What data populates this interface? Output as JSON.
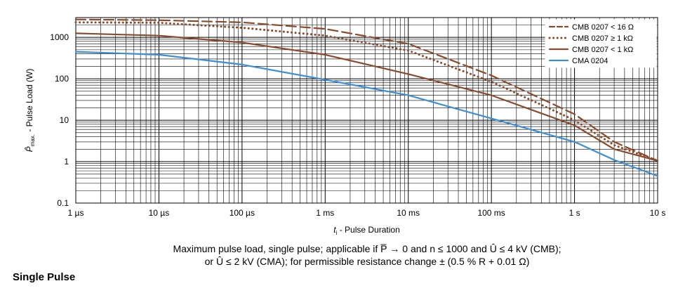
{
  "chart_data": {
    "type": "line",
    "xscale": "log",
    "yscale": "log",
    "xlim": [
      1e-06,
      10
    ],
    "ylim": [
      0.1,
      3000
    ],
    "grid": true,
    "legend_position": "top-right",
    "xlabel": "ti - Pulse Duration",
    "ylabel": "P̂max. - Pulse Load (W)",
    "x_ticks": [
      {
        "value": 1e-06,
        "label": "1 µs"
      },
      {
        "value": 1e-05,
        "label": "10 µs"
      },
      {
        "value": 0.0001,
        "label": "100 µs"
      },
      {
        "value": 0.001,
        "label": "1 ms"
      },
      {
        "value": 0.01,
        "label": "10 ms"
      },
      {
        "value": 0.1,
        "label": "100 ms"
      },
      {
        "value": 1,
        "label": "1 s"
      },
      {
        "value": 10,
        "label": "10 s"
      }
    ],
    "y_ticks": [
      {
        "value": 0.1,
        "label": "0.1"
      },
      {
        "value": 1,
        "label": "1"
      },
      {
        "value": 10,
        "label": "10"
      },
      {
        "value": 100,
        "label": "100"
      },
      {
        "value": 1000,
        "label": "1000"
      }
    ],
    "series": [
      {
        "name": "CMB 0207 < 16 Ω",
        "color": "#8b4a2b",
        "style": "dashed",
        "points": [
          [
            1e-06,
            2700
          ],
          [
            1e-05,
            2600
          ],
          [
            0.0001,
            2300
          ],
          [
            0.001,
            1600
          ],
          [
            0.01,
            700
          ],
          [
            0.1,
            120
          ],
          [
            1,
            14
          ],
          [
            3,
            3
          ],
          [
            10,
            1.05
          ]
        ]
      },
      {
        "name": "CMB 0207 ≥ 1 kΩ",
        "color": "#8b4a2b",
        "style": "dotted",
        "points": [
          [
            1e-06,
            2300
          ],
          [
            1e-05,
            2250
          ],
          [
            0.0001,
            1700
          ],
          [
            0.001,
            1100
          ],
          [
            0.01,
            480
          ],
          [
            0.1,
            85
          ],
          [
            1,
            10
          ],
          [
            3,
            2.5
          ],
          [
            10,
            1.05
          ]
        ]
      },
      {
        "name": "CMB 0207 < 1 kΩ",
        "color": "#8b4a2b",
        "style": "solid",
        "points": [
          [
            1e-06,
            1250
          ],
          [
            1e-05,
            1100
          ],
          [
            0.0001,
            750
          ],
          [
            0.001,
            380
          ],
          [
            0.01,
            130
          ],
          [
            0.1,
            40
          ],
          [
            1,
            7.5
          ],
          [
            3,
            2
          ],
          [
            10,
            1.05
          ]
        ]
      },
      {
        "name": "CMA 0204",
        "color": "#3a8fd6",
        "style": "solid",
        "points": [
          [
            1e-06,
            450
          ],
          [
            1e-05,
            380
          ],
          [
            0.0001,
            220
          ],
          [
            0.001,
            95
          ],
          [
            0.01,
            40
          ],
          [
            0.1,
            11
          ],
          [
            1,
            3
          ],
          [
            3,
            1.1
          ],
          [
            10,
            0.45
          ]
        ]
      }
    ]
  },
  "axis": {
    "y_label_hat_p": "P̂",
    "y_label_sub": "max.",
    "y_label_rest": " - Pulse Load  (W)",
    "x_label_t": "t",
    "x_label_sub": "i",
    "x_label_rest": " - Pulse Duration"
  },
  "caption": {
    "line1": "Maximum pulse load, single pulse; applicable if P̅ → 0 and n ≤ 1000 and Û ≤ 4 kV (CMB);",
    "line2": "or Û ≤ 2 kV (CMA); for permissible resistance change ± (0.5 % R + 0.01 Ω)"
  },
  "section_title": "Single Pulse"
}
